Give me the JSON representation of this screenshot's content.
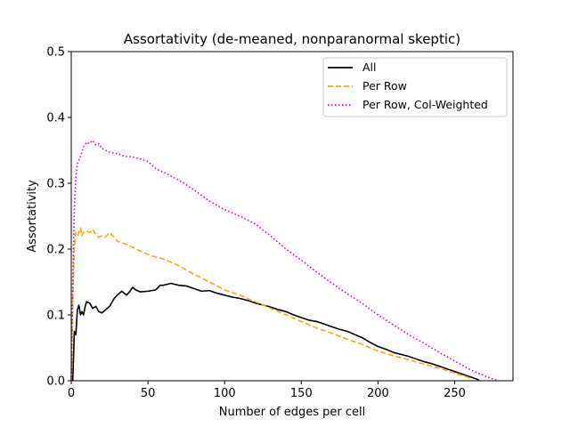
{
  "chart_data": {
    "type": "line",
    "title": "Assortativity (de-meaned, nonparanormal skeptic)",
    "xlabel": "Number of edges per cell",
    "ylabel": "Assortativity",
    "xlim": [
      0,
      288
    ],
    "ylim": [
      0,
      0.5
    ],
    "xticks": [
      0,
      50,
      100,
      150,
      200,
      250
    ],
    "yticks": [
      0.0,
      0.1,
      0.2,
      0.3,
      0.4,
      0.5
    ],
    "xtick_labels": [
      "0",
      "50",
      "100",
      "150",
      "200",
      "250"
    ],
    "ytick_labels": [
      "0.0",
      "0.1",
      "0.2",
      "0.3",
      "0.4",
      "0.5"
    ],
    "legend_position": "top-right",
    "grid": false,
    "series": [
      {
        "name": "All",
        "color": "#000000",
        "style": "solid",
        "x": [
          1,
          2,
          3,
          4,
          5,
          6,
          7,
          8,
          9,
          10,
          12,
          14,
          16,
          18,
          20,
          22,
          25,
          28,
          30,
          33,
          36,
          38,
          40,
          42,
          45,
          50,
          55,
          58,
          60,
          65,
          70,
          75,
          80,
          85,
          90,
          95,
          100,
          105,
          110,
          115,
          120,
          125,
          130,
          135,
          140,
          145,
          150,
          155,
          160,
          165,
          170,
          175,
          180,
          185,
          190,
          195,
          200,
          205,
          210,
          215,
          220,
          225,
          230,
          235,
          240,
          245,
          250,
          255,
          260,
          265,
          266
        ],
        "y": [
          0.0,
          0.075,
          0.07,
          0.108,
          0.115,
          0.1,
          0.105,
          0.1,
          0.112,
          0.12,
          0.118,
          0.11,
          0.113,
          0.105,
          0.103,
          0.107,
          0.113,
          0.125,
          0.13,
          0.136,
          0.13,
          0.135,
          0.142,
          0.138,
          0.135,
          0.136,
          0.138,
          0.145,
          0.145,
          0.148,
          0.145,
          0.144,
          0.14,
          0.136,
          0.137,
          0.133,
          0.13,
          0.127,
          0.125,
          0.122,
          0.118,
          0.115,
          0.112,
          0.108,
          0.105,
          0.1,
          0.096,
          0.092,
          0.09,
          0.086,
          0.082,
          0.078,
          0.075,
          0.07,
          0.065,
          0.058,
          0.052,
          0.048,
          0.043,
          0.04,
          0.037,
          0.033,
          0.029,
          0.026,
          0.022,
          0.018,
          0.014,
          0.01,
          0.006,
          0.002,
          0.0
        ]
      },
      {
        "name": "Per Row",
        "color": "#FFA500",
        "style": "dashed",
        "x": [
          0,
          1,
          2,
          3,
          4,
          5,
          6,
          7,
          8,
          10,
          12,
          14,
          16,
          18,
          20,
          22,
          25,
          28,
          30,
          35,
          40,
          45,
          50,
          55,
          60,
          65,
          70,
          75,
          80,
          90,
          100,
          110,
          120,
          130,
          140,
          150,
          160,
          170,
          180,
          190,
          200,
          210,
          220,
          230,
          240,
          250,
          255,
          260,
          262
        ],
        "y": [
          0.0,
          0.12,
          0.2,
          0.225,
          0.22,
          0.225,
          0.232,
          0.22,
          0.225,
          0.228,
          0.225,
          0.23,
          0.222,
          0.218,
          0.22,
          0.218,
          0.225,
          0.218,
          0.212,
          0.208,
          0.203,
          0.197,
          0.192,
          0.188,
          0.185,
          0.18,
          0.175,
          0.168,
          0.162,
          0.15,
          0.138,
          0.13,
          0.12,
          0.11,
          0.1,
          0.09,
          0.08,
          0.072,
          0.063,
          0.055,
          0.045,
          0.038,
          0.032,
          0.025,
          0.019,
          0.012,
          0.008,
          0.004,
          0.0
        ]
      },
      {
        "name": "Per Row, Col-Weighted",
        "color": "#CC00CC",
        "style": "dotted",
        "x": [
          0,
          1,
          2,
          3,
          4,
          5,
          6,
          7,
          8,
          10,
          12,
          14,
          16,
          18,
          20,
          25,
          30,
          35,
          40,
          45,
          50,
          55,
          60,
          70,
          80,
          90,
          100,
          110,
          120,
          130,
          140,
          150,
          160,
          170,
          180,
          190,
          200,
          210,
          220,
          230,
          240,
          250,
          260,
          270,
          278
        ],
        "y": [
          0.0,
          0.15,
          0.26,
          0.31,
          0.33,
          0.335,
          0.34,
          0.348,
          0.355,
          0.362,
          0.36,
          0.365,
          0.358,
          0.36,
          0.353,
          0.347,
          0.345,
          0.341,
          0.34,
          0.337,
          0.333,
          0.322,
          0.317,
          0.305,
          0.29,
          0.273,
          0.26,
          0.25,
          0.238,
          0.22,
          0.2,
          0.183,
          0.165,
          0.148,
          0.132,
          0.117,
          0.1,
          0.085,
          0.07,
          0.057,
          0.043,
          0.03,
          0.017,
          0.007,
          0.0
        ]
      }
    ]
  }
}
